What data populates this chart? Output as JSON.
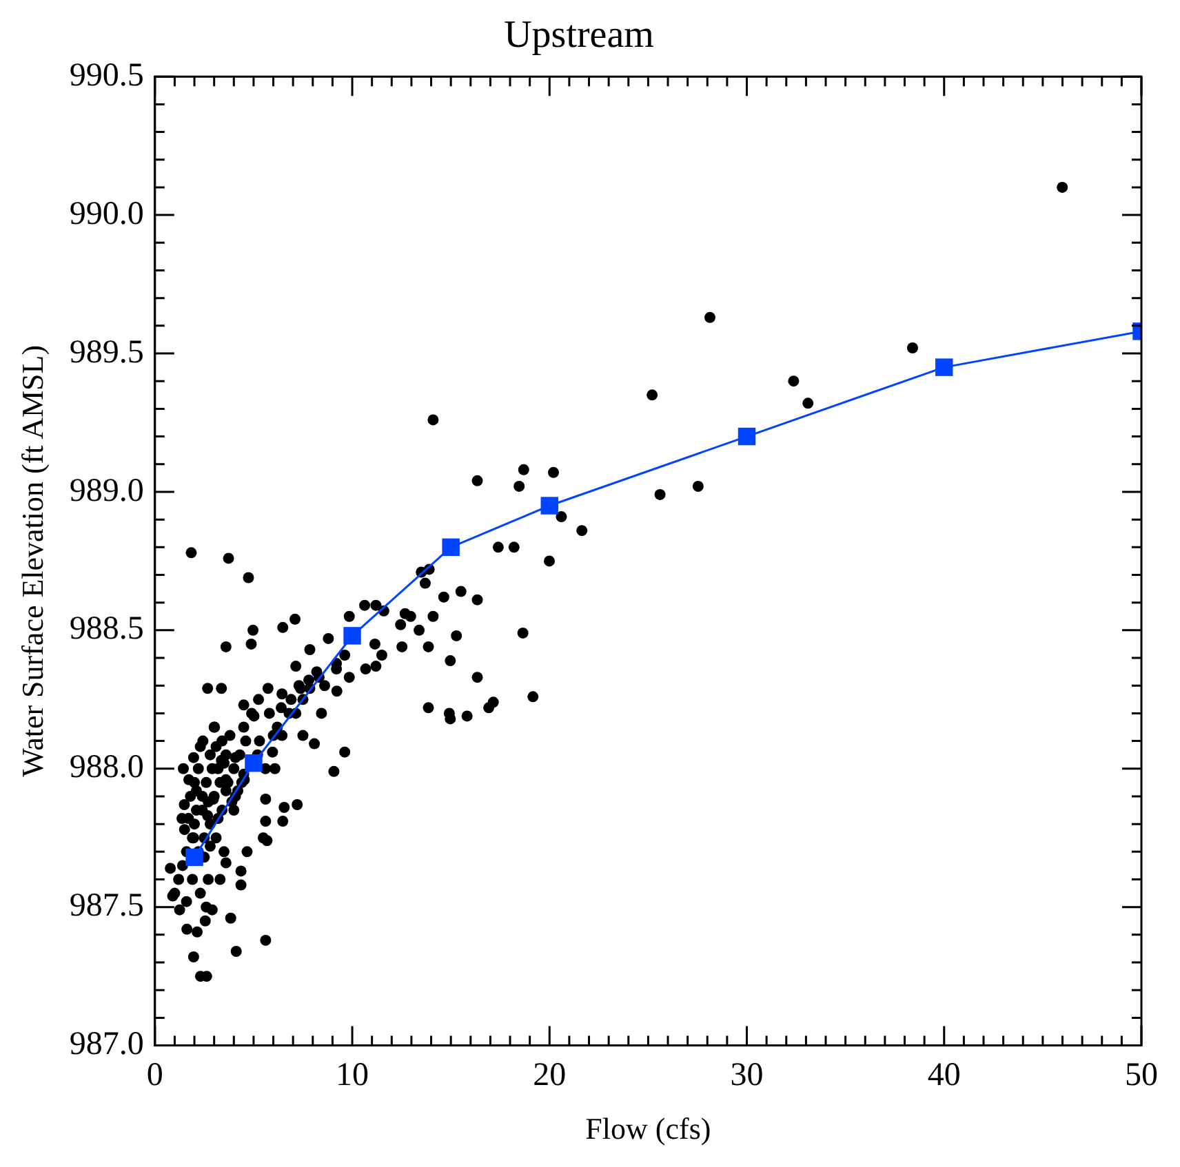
{
  "chart_data": {
    "type": "scatter",
    "title": "Upstream",
    "xlabel": "Flow (cfs)",
    "ylabel": "Water Surface Elevation (ft AMSL)",
    "xlim": [
      0,
      50
    ],
    "ylim": [
      987.0,
      990.5
    ],
    "xticks": [
      0,
      {
        "value": 1,
        "label": null
      },
      {
        "value": 2,
        "label": null
      },
      {
        "value": 3,
        "label": null
      },
      {
        "value": 4,
        "label": null
      },
      {
        "value": 5,
        "label": null
      },
      {
        "value": 6,
        "label": null
      },
      {
        "value": 7,
        "label": null
      },
      {
        "value": 8,
        "label": null
      },
      {
        "value": 9,
        "label": null
      },
      10,
      {
        "value": 11,
        "label": null
      },
      {
        "value": 12,
        "label": null
      },
      {
        "value": 13,
        "label": null
      },
      {
        "value": 14,
        "label": null
      },
      {
        "value": 15,
        "label": null
      },
      {
        "value": 16,
        "label": null
      },
      {
        "value": 17,
        "label": null
      },
      {
        "value": 18,
        "label": null
      },
      {
        "value": 19,
        "label": null
      },
      20,
      {
        "value": 21,
        "label": null
      },
      {
        "value": 22,
        "label": null
      },
      {
        "value": 23,
        "label": null
      },
      {
        "value": 24,
        "label": null
      },
      {
        "value": 25,
        "label": null
      },
      {
        "value": 26,
        "label": null
      },
      {
        "value": 27,
        "label": null
      },
      {
        "value": 28,
        "label": null
      },
      {
        "value": 29,
        "label": null
      },
      30,
      {
        "value": 31,
        "label": null
      },
      {
        "value": 32,
        "label": null
      },
      {
        "value": 33,
        "label": null
      },
      {
        "value": 34,
        "label": null
      },
      {
        "value": 35,
        "label": null
      },
      {
        "value": 36,
        "label": null
      },
      {
        "value": 37,
        "label": null
      },
      {
        "value": 38,
        "label": null
      },
      {
        "value": 39,
        "label": null
      },
      40,
      {
        "value": 41,
        "label": null
      },
      {
        "value": 42,
        "label": null
      },
      {
        "value": 43,
        "label": null
      },
      {
        "value": 44,
        "label": null
      },
      {
        "value": 45,
        "label": null
      },
      {
        "value": 46,
        "label": null
      },
      {
        "value": 47,
        "label": null
      },
      {
        "value": 48,
        "label": null
      },
      {
        "value": 49,
        "label": null
      },
      50
    ],
    "yticks": [
      {
        "value": 987.0,
        "label": "987.0"
      },
      {
        "value": 987.1,
        "label": null
      },
      {
        "value": 987.2,
        "label": null
      },
      {
        "value": 987.3,
        "label": null
      },
      {
        "value": 987.4,
        "label": null
      },
      {
        "value": 987.5,
        "label": "987.5"
      },
      {
        "value": 987.6,
        "label": null
      },
      {
        "value": 987.7,
        "label": null
      },
      {
        "value": 987.8,
        "label": null
      },
      {
        "value": 987.9,
        "label": null
      },
      {
        "value": 988.0,
        "label": "988.0"
      },
      {
        "value": 988.1,
        "label": null
      },
      {
        "value": 988.2,
        "label": null
      },
      {
        "value": 988.3,
        "label": null
      },
      {
        "value": 988.4,
        "label": null
      },
      {
        "value": 988.5,
        "label": "988.5"
      },
      {
        "value": 988.6,
        "label": null
      },
      {
        "value": 988.7,
        "label": null
      },
      {
        "value": 988.8,
        "label": null
      },
      {
        "value": 988.9,
        "label": null
      },
      {
        "value": 989.0,
        "label": "989.0"
      },
      {
        "value": 989.1,
        "label": null
      },
      {
        "value": 989.2,
        "label": null
      },
      {
        "value": 989.3,
        "label": null
      },
      {
        "value": 989.4,
        "label": null
      },
      {
        "value": 989.5,
        "label": "989.5"
      },
      {
        "value": 989.6,
        "label": null
      },
      {
        "value": 989.7,
        "label": null
      },
      {
        "value": 989.8,
        "label": null
      },
      {
        "value": 989.9,
        "label": null
      },
      {
        "value": 990.0,
        "label": "990.0"
      },
      {
        "value": 990.1,
        "label": null
      },
      {
        "value": 990.2,
        "label": null
      },
      {
        "value": 990.3,
        "label": null
      },
      {
        "value": 990.4,
        "label": null
      },
      {
        "value": 990.5,
        "label": "990.5"
      }
    ],
    "grid": false,
    "legend": false,
    "series": [
      {
        "type": "scatter",
        "marker": "circle",
        "color": "#000000",
        "x": [
          1.84,
          3.73,
          4.74,
          4.97,
          4.88,
          3.6,
          6.48,
          7.1,
          2.67,
          3.37,
          4.5,
          1.44,
          9.07,
          9.62,
          7.21,
          6.55,
          6.48,
          5.61,
          5.61,
          5.49,
          5.68,
          4.67,
          3.6,
          4.36,
          4.36,
          3.84,
          4.12,
          5.61,
          1.96,
          2.31,
          2.62,
          2.14,
          1.62,
          0.78,
          0.9,
          1.25,
          2.9,
          2.55,
          7.85,
          8.79,
          9.85,
          10.63,
          11.2,
          11.15,
          11.5,
          11.2,
          10.68,
          9.85,
          9.22,
          8.44,
          8.08,
          7.5,
          7.14,
          7.38,
          6.44,
          5.73,
          5.25,
          5.02,
          4.5,
          3.02,
          2.43,
          1.96,
          1.72,
          1.49,
          1.37,
          1.96,
          2.67,
          2.96,
          3.6,
          3.37,
          4.08,
          4.08,
          4.53,
          5.96,
          6.08,
          6.44,
          7.14,
          7.85,
          8.32,
          9.2,
          9.62,
          9.2,
          11.6,
          12.68,
          12.96,
          12.45,
          13.39,
          14.1,
          12.52,
          13.86,
          14.64,
          15.51,
          16.34,
          15.28,
          14.97,
          16.34,
          13.86,
          14.92,
          14.97,
          15.82,
          16.92,
          17.15,
          18.65,
          19.16,
          13.7,
          13.5,
          13.9,
          17.4,
          18.2,
          19.99,
          45.99,
          28.13,
          38.4,
          32.37,
          33.1,
          25.2,
          20.2,
          20.6,
          21.64,
          25.6,
          27.53,
          14.1,
          16.34,
          18.69,
          18.46,
          1.8,
          2.0,
          2.2,
          2.4,
          2.6,
          2.8,
          3.0,
          3.2,
          3.4,
          3.6,
          3.8,
          4.0,
          2.2,
          2.5,
          2.8,
          3.1,
          3.4,
          1.6,
          1.9,
          2.3,
          2.7,
          3.3,
          1.2,
          1.0,
          2.1,
          3.7,
          4.3,
          4.6,
          5.3,
          5.8,
          6.2,
          6.8,
          7.5,
          4.9,
          3.0,
          1.5,
          1.7,
          1.9,
          2.1,
          2.3,
          2.5,
          2.7,
          2.9,
          3.1,
          3.3,
          3.5,
          3.9,
          4.2,
          4.5,
          2.0,
          2.4,
          2.8,
          3.2,
          3.6,
          4.0,
          4.4,
          4.8,
          5.2,
          5.6,
          6.0,
          6.4,
          6.9,
          7.3,
          7.8,
          8.2,
          8.6,
          1.4,
          1.6,
          2.6,
          3.5
        ],
        "values": [
          988.78,
          988.76,
          988.69,
          988.5,
          988.45,
          988.44,
          988.51,
          988.54,
          988.29,
          988.29,
          988.23,
          988.0,
          987.99,
          988.06,
          987.87,
          987.86,
          987.81,
          987.89,
          987.81,
          987.75,
          987.74,
          987.7,
          987.66,
          987.63,
          987.58,
          987.46,
          987.34,
          987.38,
          987.32,
          987.25,
          987.25,
          987.41,
          987.42,
          987.64,
          987.54,
          987.49,
          987.49,
          987.45,
          988.43,
          988.47,
          988.55,
          988.59,
          988.59,
          988.45,
          988.41,
          988.37,
          988.36,
          988.33,
          988.28,
          988.2,
          988.09,
          988.12,
          988.37,
          988.29,
          988.27,
          988.29,
          988.25,
          988.19,
          988.15,
          988.15,
          988.1,
          988.04,
          987.96,
          987.87,
          987.82,
          987.75,
          987.83,
          987.89,
          987.96,
          988.03,
          988.04,
          987.9,
          987.96,
          988.06,
          988.0,
          988.12,
          988.2,
          988.29,
          988.33,
          988.36,
          988.41,
          988.38,
          988.57,
          988.56,
          988.55,
          988.52,
          988.5,
          988.55,
          988.44,
          988.44,
          988.62,
          988.64,
          988.61,
          988.48,
          988.39,
          988.33,
          988.22,
          988.2,
          988.18,
          988.19,
          988.22,
          988.24,
          988.49,
          988.26,
          988.67,
          988.71,
          988.72,
          988.8,
          988.8,
          988.75,
          990.1,
          989.63,
          989.52,
          989.4,
          989.32,
          989.35,
          989.07,
          988.91,
          988.86,
          988.99,
          989.02,
          989.26,
          989.04,
          989.08,
          989.02,
          987.9,
          987.95,
          988.0,
          987.85,
          987.95,
          988.05,
          987.9,
          988.0,
          988.1,
          988.05,
          988.12,
          988.0,
          987.7,
          987.75,
          987.8,
          987.75,
          987.85,
          987.7,
          987.6,
          987.55,
          987.6,
          987.6,
          987.6,
          987.55,
          987.85,
          987.95,
          988.05,
          988.1,
          988.1,
          988.2,
          988.15,
          988.2,
          988.25,
          988.2,
          988.15,
          987.78,
          987.82,
          987.75,
          987.92,
          988.08,
          987.68,
          987.88,
          988.0,
          988.08,
          987.95,
          988.02,
          987.88,
          987.92,
          987.98,
          987.8,
          987.9,
          987.72,
          987.82,
          987.92,
          987.85,
          987.95,
          null,
          988.05,
          988.0,
          988.12,
          988.22,
          988.25,
          988.3,
          988.32,
          988.35,
          988.3,
          987.65,
          987.52,
          987.5,
          987.7
        ]
      },
      {
        "type": "line",
        "marker": "square",
        "line_style": "solid",
        "color": "#0044ff",
        "x": [
          2,
          5,
          10,
          15,
          20,
          30,
          40,
          50
        ],
        "values": [
          987.68,
          988.02,
          988.48,
          988.8,
          988.95,
          989.2,
          989.45,
          989.58
        ]
      }
    ]
  }
}
